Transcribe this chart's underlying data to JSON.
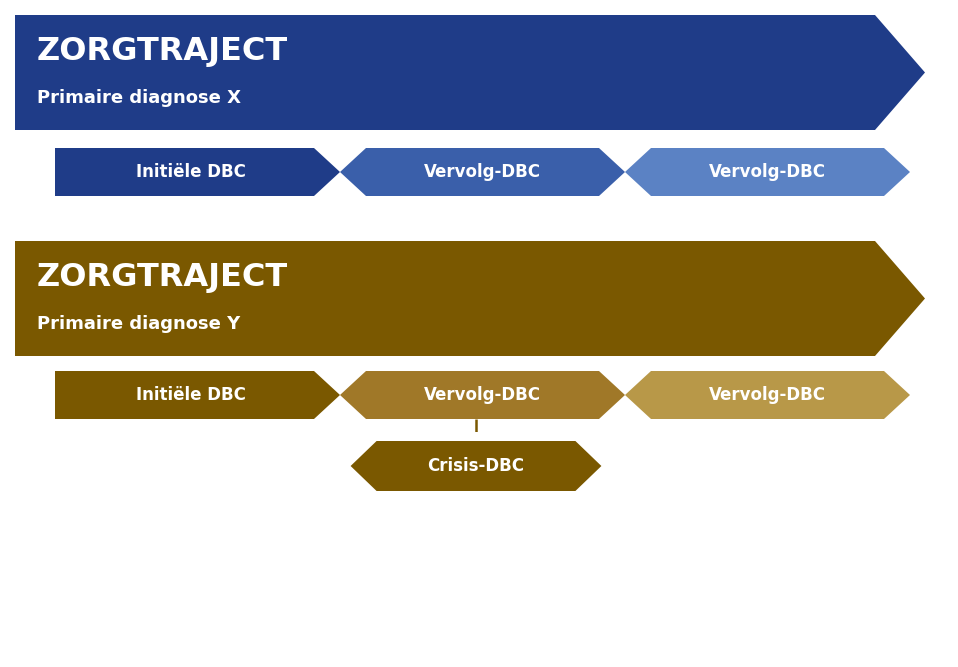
{
  "bg_color": "#ffffff",
  "blue_dark": "#1f3c88",
  "blue_mid": "#3a5faa",
  "blue_light": "#5b82c4",
  "brown_dark": "#7a5800",
  "brown_mid": "#a07828",
  "brown_light": "#b89848",
  "white": "#ffffff",
  "zorg1_title": "ZORGTRAJECT",
  "zorg1_sub": "Primaire diagnose X",
  "zorg2_title": "ZORGTRAJECT",
  "zorg2_sub": "Primaire diagnose Y",
  "dbc_labels": [
    "Initiële DBC",
    "Vervolg-DBC",
    "Vervolg-DBC"
  ],
  "crisis_label": "Crisis-DBC",
  "fig_w": 9.58,
  "fig_h": 6.67,
  "dpi": 100
}
